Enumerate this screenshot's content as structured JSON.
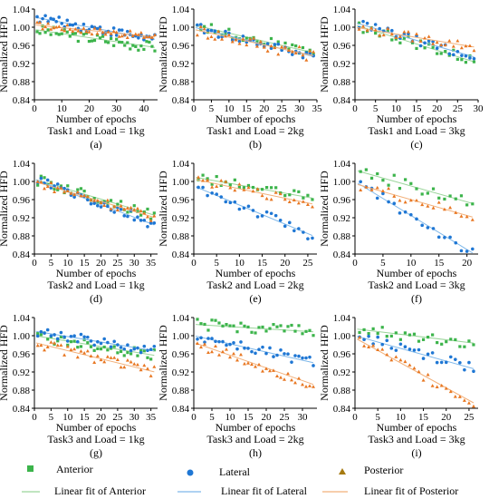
{
  "colors": {
    "anterior": "#3cb44b",
    "lateral": "#1f77d4",
    "posterior": "#e87722",
    "anterior_fit": "#9ad59a",
    "lateral_fit": "#7fb8ea",
    "posterior_fit": "#f2b07a"
  },
  "legend": {
    "anterior": "Anterior",
    "lateral": "Lateral",
    "posterior": "Posterior",
    "anterior_fit": "Linear fit of Anterior",
    "lateral_fit": "Linear fit of Lateral",
    "posterior_fit": "Linear fit of Posterior"
  },
  "chart_data": [
    {
      "type": "scatter",
      "panel": "(a)",
      "caption": "Task1 and Load = 1kg",
      "xlabel": "Number of epochs",
      "ylabel": "Normalized HFD",
      "xlim": [
        0,
        45
      ],
      "ylim": [
        0.84,
        1.04
      ],
      "xticks": [
        0,
        10,
        20,
        30,
        40
      ],
      "yticks": [
        0.84,
        0.88,
        0.92,
        0.96,
        1.0,
        1.04
      ],
      "series": [
        {
          "key": "anterior",
          "slope": -0.0009,
          "intercept": 0.995,
          "n": 44,
          "noise": 0.012
        },
        {
          "key": "lateral",
          "slope": -0.0011,
          "intercept": 1.022,
          "n": 44,
          "noise": 0.01
        },
        {
          "key": "posterior",
          "slope": -0.0006,
          "intercept": 1.005,
          "n": 44,
          "noise": 0.008
        }
      ]
    },
    {
      "type": "scatter",
      "panel": "(b)",
      "caption": "Task1 and Load = 2kg",
      "xlabel": "Number of epochs",
      "ylabel": "Normalized HFD",
      "xlim": [
        0,
        35
      ],
      "ylim": [
        0.84,
        1.04
      ],
      "xticks": [
        0,
        5,
        10,
        15,
        20,
        25,
        30,
        35
      ],
      "yticks": [
        0.84,
        0.88,
        0.92,
        0.96,
        1.0,
        1.04
      ],
      "series": [
        {
          "key": "anterior",
          "slope": -0.0018,
          "intercept": 1.005,
          "n": 34,
          "noise": 0.01
        },
        {
          "key": "lateral",
          "slope": -0.0019,
          "intercept": 1.0,
          "n": 34,
          "noise": 0.01
        },
        {
          "key": "posterior",
          "slope": -0.0017,
          "intercept": 0.995,
          "n": 34,
          "noise": 0.014
        }
      ]
    },
    {
      "type": "scatter",
      "panel": "(c)",
      "caption": "Task1 and Load = 3kg",
      "xlabel": "Number of epochs",
      "ylabel": "Normalized HFD",
      "xlim": [
        0,
        30
      ],
      "ylim": [
        0.84,
        1.04
      ],
      "xticks": [
        0,
        5,
        10,
        15,
        20,
        25,
        30
      ],
      "yticks": [
        0.84,
        0.88,
        0.92,
        0.96,
        1.0,
        1.04
      ],
      "series": [
        {
          "key": "anterior",
          "slope": -0.0028,
          "intercept": 1.005,
          "n": 29,
          "noise": 0.012
        },
        {
          "key": "lateral",
          "slope": -0.0026,
          "intercept": 1.01,
          "n": 29,
          "noise": 0.01
        },
        {
          "key": "posterior",
          "slope": -0.0015,
          "intercept": 1.0,
          "n": 29,
          "noise": 0.01
        }
      ]
    },
    {
      "type": "scatter",
      "panel": "(d)",
      "caption": "Task2 and Load = 1kg",
      "xlabel": "Number of epochs",
      "ylabel": "Normalized HFD",
      "xlim": [
        0,
        37
      ],
      "ylim": [
        0.84,
        1.04
      ],
      "xticks": [
        0,
        5,
        10,
        15,
        20,
        25,
        30,
        35
      ],
      "yticks": [
        0.84,
        0.88,
        0.92,
        0.96,
        1.0,
        1.04
      ],
      "series": [
        {
          "key": "anterior",
          "slope": -0.0022,
          "intercept": 1.005,
          "n": 36,
          "noise": 0.012
        },
        {
          "key": "lateral",
          "slope": -0.0028,
          "intercept": 1.005,
          "n": 36,
          "noise": 0.012
        },
        {
          "key": "posterior",
          "slope": -0.0022,
          "intercept": 1.0,
          "n": 36,
          "noise": 0.01
        }
      ]
    },
    {
      "type": "scatter",
      "panel": "(e)",
      "caption": "Task2 and Load = 2kg",
      "xlabel": "Number of epochs",
      "ylabel": "Normalized HFD",
      "xlim": [
        0,
        27
      ],
      "ylim": [
        0.84,
        1.04
      ],
      "xticks": [
        0,
        5,
        10,
        15,
        20,
        25
      ],
      "yticks": [
        0.84,
        0.88,
        0.92,
        0.96,
        1.0,
        1.04
      ],
      "series": [
        {
          "key": "anterior",
          "slope": -0.0018,
          "intercept": 1.01,
          "n": 26,
          "noise": 0.01
        },
        {
          "key": "lateral",
          "slope": -0.0042,
          "intercept": 0.99,
          "n": 26,
          "noise": 0.012
        },
        {
          "key": "posterior",
          "slope": -0.0021,
          "intercept": 1.005,
          "n": 26,
          "noise": 0.01
        }
      ]
    },
    {
      "type": "scatter",
      "panel": "(f)",
      "caption": "Task2 and Load = 3kg",
      "xlabel": "Number of epochs",
      "ylabel": "Normalized HFD",
      "xlim": [
        0,
        22
      ],
      "ylim": [
        0.84,
        1.04
      ],
      "xticks": [
        0,
        5,
        10,
        15,
        20
      ],
      "yticks": [
        0.84,
        0.88,
        0.92,
        0.96,
        1.0,
        1.04
      ],
      "series": [
        {
          "key": "anterior",
          "slope": -0.0035,
          "intercept": 1.025,
          "n": 21,
          "noise": 0.014
        },
        {
          "key": "lateral",
          "slope": -0.0075,
          "intercept": 1.0,
          "n": 21,
          "noise": 0.012
        },
        {
          "key": "posterior",
          "slope": -0.0035,
          "intercept": 0.995,
          "n": 21,
          "noise": 0.012
        }
      ]
    },
    {
      "type": "scatter",
      "panel": "(g)",
      "caption": "Task3 and Load = 1kg",
      "xlabel": "Number of epochs",
      "ylabel": "Normalized HFD",
      "xlim": [
        0,
        37
      ],
      "ylim": [
        0.84,
        1.04
      ],
      "xticks": [
        0,
        5,
        10,
        15,
        20,
        25,
        30,
        35
      ],
      "yticks": [
        0.84,
        0.88,
        0.92,
        0.96,
        1.0,
        1.04
      ],
      "series": [
        {
          "key": "anterior",
          "slope": -0.0012,
          "intercept": 1.0,
          "n": 36,
          "noise": 0.012
        },
        {
          "key": "lateral",
          "slope": -0.0012,
          "intercept": 1.01,
          "n": 36,
          "noise": 0.01
        },
        {
          "key": "posterior",
          "slope": -0.0018,
          "intercept": 0.985,
          "n": 36,
          "noise": 0.012
        }
      ]
    },
    {
      "type": "scatter",
      "panel": "(h)",
      "caption": "Task3 and Load = 2kg",
      "xlabel": "Number of epochs",
      "ylabel": "Normalized HFD",
      "xlim": [
        0,
        34
      ],
      "ylim": [
        0.84,
        1.04
      ],
      "xticks": [
        0,
        5,
        10,
        15,
        20,
        25,
        30
      ],
      "yticks": [
        0.84,
        0.88,
        0.92,
        0.96,
        1.0,
        1.04
      ],
      "series": [
        {
          "key": "anterior",
          "slope": -0.0005,
          "intercept": 1.025,
          "n": 33,
          "noise": 0.012
        },
        {
          "key": "lateral",
          "slope": -0.0018,
          "intercept": 1.0,
          "n": 33,
          "noise": 0.012
        },
        {
          "key": "posterior",
          "slope": -0.0028,
          "intercept": 0.985,
          "n": 33,
          "noise": 0.012
        }
      ]
    },
    {
      "type": "scatter",
      "panel": "(i)",
      "caption": "Task3 and Load = 3kg",
      "xlabel": "Number of epochs",
      "ylabel": "Normalized HFD",
      "xlim": [
        0,
        27
      ],
      "ylim": [
        0.84,
        1.04
      ],
      "xticks": [
        0,
        5,
        10,
        15,
        20,
        25
      ],
      "yticks": [
        0.84,
        0.88,
        0.92,
        0.96,
        1.0,
        1.04
      ],
      "series": [
        {
          "key": "anterior",
          "slope": -0.0012,
          "intercept": 1.015,
          "n": 26,
          "noise": 0.012
        },
        {
          "key": "lateral",
          "slope": -0.0028,
          "intercept": 1.0,
          "n": 26,
          "noise": 0.012
        },
        {
          "key": "posterior",
          "slope": -0.0055,
          "intercept": 0.995,
          "n": 26,
          "noise": 0.012
        }
      ]
    }
  ]
}
